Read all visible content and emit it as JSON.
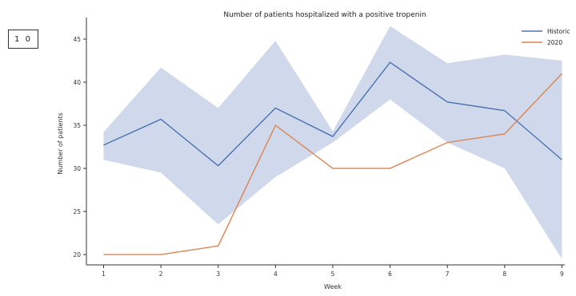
{
  "panel_label": "1 0",
  "chart_data": {
    "type": "line",
    "title": "Number of patients hospitalized with a positive tropenin",
    "xlabel": "Week",
    "ylabel": "Number of patients",
    "x": [
      1,
      2,
      3,
      4,
      5,
      6,
      7,
      8,
      9
    ],
    "xlim": [
      0.7,
      9.05
    ],
    "ylim": [
      18.8,
      47.5
    ],
    "yticks": [
      20,
      25,
      30,
      35,
      40,
      45
    ],
    "series": [
      {
        "name": "Historic",
        "color": "#4c72b0",
        "values": [
          32.7,
          35.7,
          30.3,
          37.0,
          33.7,
          42.3,
          37.7,
          36.7,
          31.0
        ],
        "band_lower": [
          31.0,
          29.5,
          23.5,
          29.0,
          33.0,
          38.0,
          33.0,
          30.0,
          19.5
        ],
        "band_upper": [
          34.2,
          41.7,
          37.0,
          44.8,
          34.3,
          46.5,
          42.2,
          43.2,
          42.5
        ],
        "band_color": "#c7d2e8"
      },
      {
        "name": "2020",
        "color": "#dd8452",
        "values": [
          20,
          20,
          21,
          35,
          30,
          30,
          33,
          34,
          41
        ]
      }
    ],
    "legend": "top-right",
    "grid": false
  }
}
